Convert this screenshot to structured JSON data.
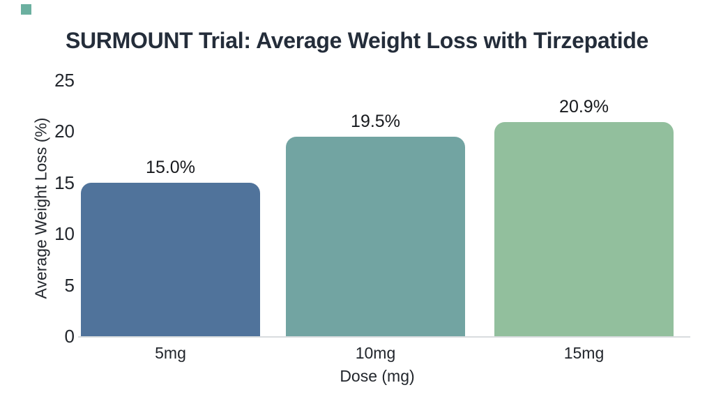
{
  "page": {
    "background": "#ffffff"
  },
  "artifact_square": {
    "color": "#6BB0A0"
  },
  "chart_data": {
    "type": "bar",
    "title": "SURMOUNT Trial: Average Weight Loss with Tirzepatide",
    "categories": [
      "5mg",
      "10mg",
      "15mg"
    ],
    "values": [
      15.0,
      19.5,
      20.9
    ],
    "value_labels": [
      "15.0%",
      "19.5%",
      "20.9%"
    ],
    "xlabel": "Dose (mg)",
    "ylabel": "Average Weight Loss (%)",
    "ylim": [
      0,
      25
    ],
    "yticks": [
      0,
      5,
      10,
      15,
      20,
      25
    ],
    "bar_colors": [
      "#50739B",
      "#72A4A2",
      "#92BF9D"
    ],
    "grid": false,
    "legend": "none",
    "colors": {
      "title_text": "#242D3A",
      "axis_text": "#22262C",
      "value_text": "#17191D",
      "baseline": "#D8DCDE"
    }
  }
}
